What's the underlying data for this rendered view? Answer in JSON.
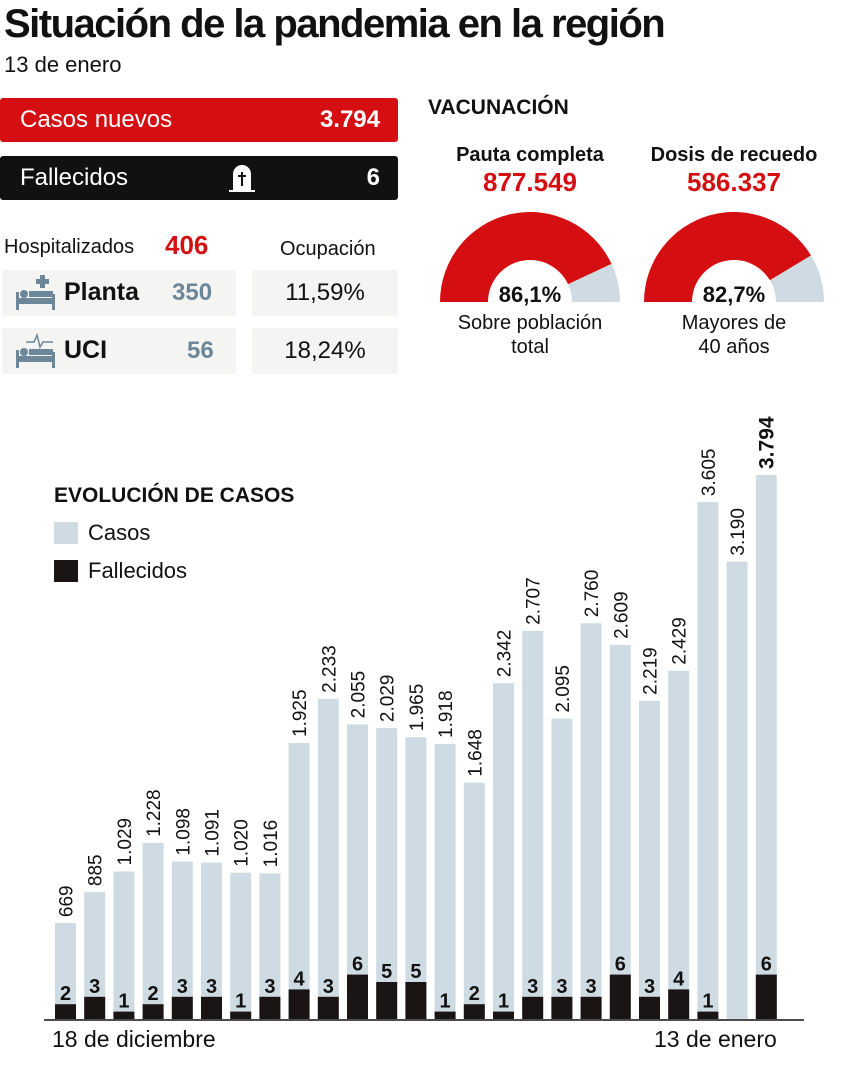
{
  "header": {
    "title": "Situación de la pandemia en la región",
    "date": "13 de enero"
  },
  "summary": {
    "cases_label": "Casos nuevos",
    "cases_value": "3.794",
    "deaths_label": "Fallecidos",
    "deaths_value": "6"
  },
  "hospital": {
    "label": "Hospitalizados",
    "total": "406",
    "occupancy_label": "Ocupación",
    "rows": [
      {
        "label": "Planta",
        "value": "350",
        "occupancy": "11,59%"
      },
      {
        "label": "UCI",
        "value": "56",
        "occupancy": "18,24%"
      }
    ]
  },
  "vaccination": {
    "title": "VACUNACIÓN",
    "gauges": [
      {
        "title": "Pauta completa",
        "value": "877.549",
        "percent_label": "86,1%",
        "percent": 86.1,
        "sub1": "Sobre población",
        "sub2": "total"
      },
      {
        "title": "Dosis de recuedo",
        "value": "586.337",
        "percent_label": "82,7%",
        "percent": 82.7,
        "sub1": "Mayores de",
        "sub2": "40 años"
      }
    ]
  },
  "colors": {
    "red": "#d50e12",
    "cases": "#cfdbe2",
    "deaths": "#1a1414",
    "gauge_rest": "#cfdbe2"
  },
  "chart_data": {
    "type": "bar",
    "title": "EVOLUCIÓN DE CASOS",
    "legend": [
      "Casos",
      "Fallecidos"
    ],
    "legend_position": "top-left",
    "x_start_label": "18 de diciembre",
    "x_end_label": "13 de enero",
    "series": [
      {
        "name": "Casos",
        "values": [
          669,
          885,
          1029,
          1228,
          1098,
          1091,
          1020,
          1016,
          1925,
          2233,
          2055,
          2029,
          1965,
          1918,
          1648,
          2342,
          2707,
          2095,
          2760,
          2609,
          2219,
          2429,
          3605,
          3190,
          3794
        ],
        "labels": [
          "669",
          "885",
          "1.029",
          "1.228",
          "1.098",
          "1.091",
          "1.020",
          "1.016",
          "1.925",
          "2.233",
          "2.055",
          "2.029",
          "1.965",
          "1.918",
          "1.648",
          "2.342",
          "2.707",
          "2.095",
          "2.760",
          "2.609",
          "2.219",
          "2.429",
          "3.605",
          "3.190",
          "3.794"
        ]
      },
      {
        "name": "Fallecidos",
        "values": [
          2,
          3,
          1,
          2,
          3,
          3,
          1,
          3,
          4,
          3,
          6,
          5,
          5,
          1,
          2,
          1,
          3,
          3,
          3,
          6,
          3,
          4,
          1,
          0,
          6
        ],
        "labels": [
          "2",
          "3",
          "1",
          "2",
          "3",
          "3",
          "1",
          "3",
          "4",
          "3",
          "6",
          "5",
          "5",
          "1",
          "2",
          "1",
          "3",
          "3",
          "3",
          "6",
          "3",
          "4",
          "1",
          "",
          "6"
        ]
      }
    ]
  }
}
